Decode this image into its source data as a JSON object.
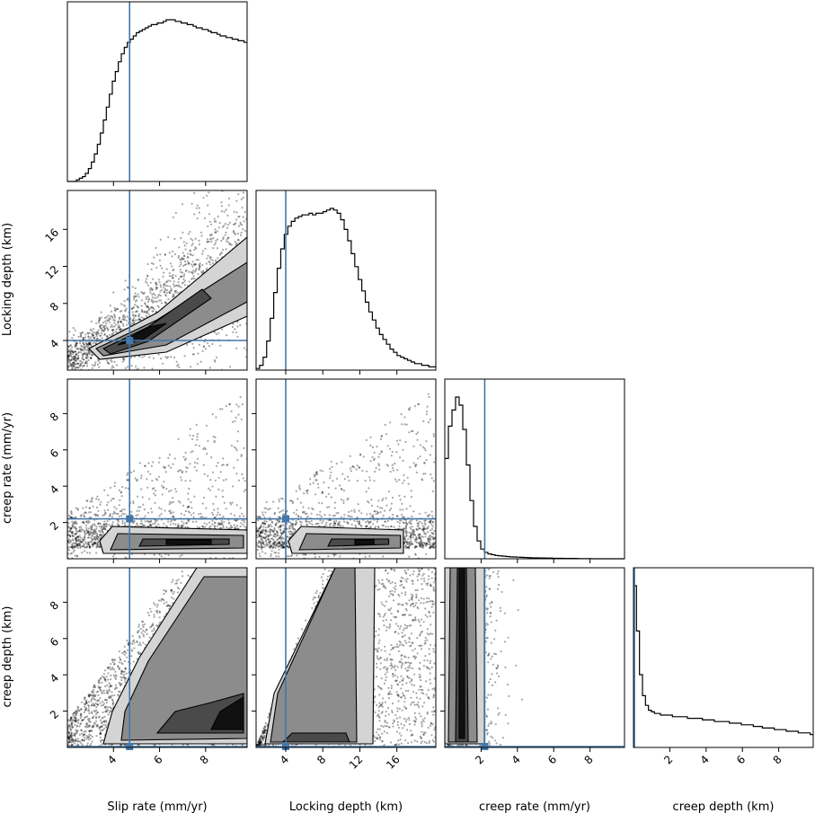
{
  "chart_data": {
    "type": "corner",
    "parameters": [
      {
        "key": "slip",
        "label": "Slip rate (mm/yr)",
        "range": [
          2.0,
          9.8
        ],
        "ticks": [
          4,
          6,
          8
        ]
      },
      {
        "key": "lock",
        "label": "Locking depth (km)",
        "range": [
          0.8,
          20.2
        ],
        "ticks": [
          4,
          8,
          12,
          16
        ]
      },
      {
        "key": "crate",
        "label": "creep rate (mm/yr)",
        "range": [
          0.0,
          9.9
        ],
        "ticks": [
          2,
          4,
          6,
          8
        ]
      },
      {
        "key": "cdepth",
        "label": "creep depth (km)",
        "range": [
          0.0,
          9.9
        ],
        "ticks": [
          2,
          4,
          6,
          8
        ]
      }
    ],
    "truths": {
      "slip": 4.7,
      "lock": 4.0,
      "crate": 2.2,
      "cdepth": 0.05
    },
    "truth_color": "#4477aa",
    "histograms": {
      "slip": [
        0.0,
        0.0,
        0.0,
        0.01,
        0.02,
        0.03,
        0.05,
        0.08,
        0.12,
        0.17,
        0.23,
        0.3,
        0.38,
        0.46,
        0.54,
        0.62,
        0.68,
        0.74,
        0.79,
        0.83,
        0.86,
        0.88,
        0.9,
        0.92,
        0.93,
        0.94,
        0.95,
        0.96,
        0.97,
        0.97,
        0.98,
        0.98,
        0.99,
        1.0,
        1.0,
        1.0,
        0.99,
        0.99,
        0.98,
        0.98,
        0.97,
        0.97,
        0.96,
        0.95,
        0.95,
        0.94,
        0.94,
        0.93,
        0.92,
        0.92,
        0.91,
        0.9,
        0.9,
        0.89,
        0.89,
        0.88,
        0.88,
        0.87,
        0.87,
        0.86
      ],
      "lock": [
        0.01,
        0.03,
        0.08,
        0.18,
        0.32,
        0.48,
        0.63,
        0.75,
        0.84,
        0.89,
        0.92,
        0.94,
        0.95,
        0.96,
        0.96,
        0.97,
        0.96,
        0.97,
        0.97,
        0.98,
        0.99,
        1.0,
        0.99,
        0.97,
        0.93,
        0.87,
        0.8,
        0.72,
        0.64,
        0.56,
        0.49,
        0.42,
        0.36,
        0.31,
        0.26,
        0.22,
        0.19,
        0.16,
        0.13,
        0.11,
        0.09,
        0.08,
        0.07,
        0.06,
        0.05,
        0.04,
        0.04,
        0.03,
        0.03,
        0.02,
        0.02
      ],
      "crate": [
        0.62,
        0.82,
        0.92,
        1.0,
        0.95,
        0.8,
        0.58,
        0.36,
        0.2,
        0.11,
        0.06,
        0.04,
        0.03,
        0.025,
        0.02,
        0.018,
        0.016,
        0.014,
        0.012,
        0.011,
        0.01,
        0.009,
        0.008,
        0.007,
        0.006,
        0.006,
        0.005,
        0.005,
        0.004,
        0.004,
        0.003,
        0.003,
        0.003,
        0.002,
        0.002,
        0.002,
        0.002,
        0.001,
        0.001,
        0.001,
        0.001,
        0.0,
        0.0,
        0.0,
        0.0,
        0.0,
        0.0,
        0.0,
        0.0,
        0.0
      ],
      "cdepth": [
        1.0,
        0.72,
        0.45,
        0.32,
        0.26,
        0.23,
        0.22,
        0.21,
        0.21,
        0.2,
        0.2,
        0.2,
        0.2,
        0.19,
        0.19,
        0.19,
        0.19,
        0.19,
        0.18,
        0.18,
        0.18,
        0.18,
        0.18,
        0.17,
        0.17,
        0.17,
        0.17,
        0.16,
        0.16,
        0.16,
        0.16,
        0.16,
        0.15,
        0.15,
        0.15,
        0.15,
        0.14,
        0.14,
        0.14,
        0.14,
        0.13,
        0.13,
        0.13,
        0.12,
        0.12,
        0.12,
        0.12,
        0.11,
        0.11,
        0.11,
        0.11,
        0.1,
        0.1,
        0.1,
        0.1,
        0.09,
        0.09,
        0.09,
        0.09,
        0.08
      ]
    },
    "grid": false
  }
}
